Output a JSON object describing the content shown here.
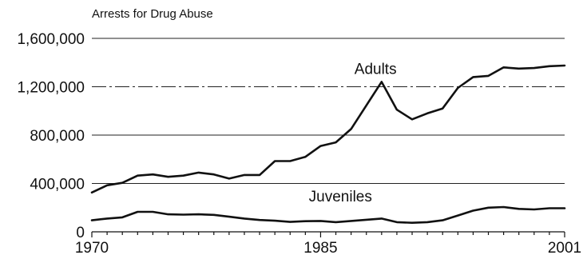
{
  "chart_data": {
    "type": "line",
    "title": "Arrests for Drug Abuse",
    "x": [
      1970,
      1971,
      1972,
      1973,
      1974,
      1975,
      1976,
      1977,
      1978,
      1979,
      1980,
      1981,
      1982,
      1983,
      1984,
      1985,
      1986,
      1987,
      1988,
      1989,
      1990,
      1991,
      1992,
      1993,
      1994,
      1995,
      1996,
      1997,
      1998,
      1999,
      2000,
      2001
    ],
    "series": [
      {
        "name": "Adults",
        "values": [
          325000,
          385000,
          405000,
          465000,
          475000,
          455000,
          465000,
          490000,
          475000,
          440000,
          470000,
          470000,
          585000,
          585000,
          620000,
          710000,
          740000,
          850000,
          1045000,
          1240000,
          1010000,
          930000,
          980000,
          1020000,
          1190000,
          1280000,
          1290000,
          1360000,
          1350000,
          1355000,
          1370000,
          1375000
        ]
      },
      {
        "name": "Juveniles",
        "values": [
          95000,
          110000,
          120000,
          165000,
          165000,
          145000,
          142000,
          145000,
          140000,
          125000,
          110000,
          98000,
          92000,
          82000,
          88000,
          90000,
          80000,
          90000,
          100000,
          110000,
          80000,
          75000,
          80000,
          95000,
          135000,
          175000,
          200000,
          205000,
          190000,
          185000,
          195000,
          195000
        ]
      }
    ],
    "y_ticks": [
      0,
      400000,
      800000,
      1200000,
      1600000
    ],
    "y_tick_labels": [
      "0",
      "400,000",
      "800,000",
      "1,200,000",
      "1,600,000"
    ],
    "x_ticks": [
      1970,
      1985,
      2001
    ],
    "x_tick_labels": [
      "1970",
      "1985",
      "2001"
    ],
    "xlim": [
      1970,
      2001
    ],
    "ylim": [
      0,
      1600000
    ],
    "grid": true,
    "colors": {
      "line": "#111111",
      "grid": "#222222"
    }
  }
}
